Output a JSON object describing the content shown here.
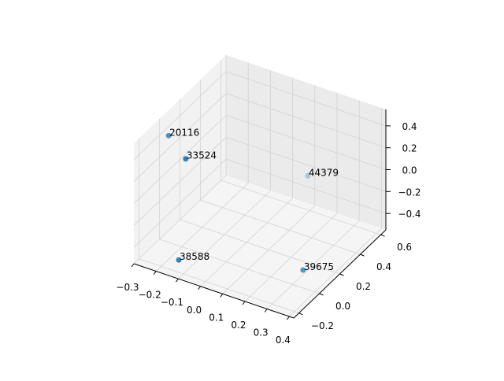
{
  "chart_data": {
    "type": "scatter",
    "projection": "3d",
    "title": "",
    "xlabel": "",
    "ylabel": "",
    "zlabel": "",
    "xlim": [
      -0.3,
      0.42
    ],
    "ylim": [
      -0.25,
      0.65
    ],
    "zlim": [
      -0.55,
      0.55
    ],
    "xticks": [
      -0.3,
      -0.2,
      -0.1,
      0.0,
      0.1,
      0.2,
      0.3,
      0.4
    ],
    "xtick_labels": [
      "−0.3",
      "−0.2",
      "−0.1",
      "0.0",
      "0.1",
      "0.2",
      "0.3",
      "0.4"
    ],
    "yticks": [
      -0.2,
      0.0,
      0.2,
      0.4,
      0.6
    ],
    "ytick_labels": [
      "−0.2",
      "0.0",
      "0.2",
      "0.4",
      "0.6"
    ],
    "zticks": [
      -0.4,
      -0.2,
      0.0,
      0.2,
      0.4
    ],
    "ztick_labels": [
      "−0.4",
      "−0.2",
      "0.0",
      "0.2",
      "0.4"
    ],
    "grid": true,
    "color": "#1f77b4",
    "points": [
      {
        "label": "20116",
        "x": -0.268,
        "y": 0.02,
        "z": 0.4
      },
      {
        "label": "33524",
        "x": -0.108,
        "y": -0.16,
        "z": 0.46
      },
      {
        "label": "44379",
        "x": 0.11,
        "y": 0.56,
        "z": -0.19
      },
      {
        "label": "38588",
        "x": -0.16,
        "y": -0.115,
        "z": -0.54
      },
      {
        "label": "39675",
        "x": 0.326,
        "y": 0.045,
        "z": -0.44
      }
    ]
  }
}
